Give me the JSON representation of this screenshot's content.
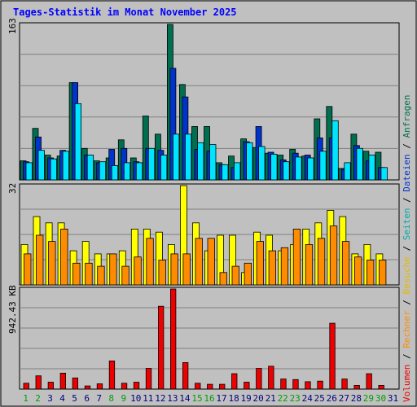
{
  "chart_data": {
    "type": "bar",
    "title": "Tages-Statistik im Monat November 2025",
    "categories": [
      "1",
      "2",
      "3",
      "4",
      "5",
      "6",
      "7",
      "8",
      "9",
      "10",
      "11",
      "12",
      "13",
      "14",
      "15",
      "16",
      "17",
      "18",
      "19",
      "20",
      "21",
      "22",
      "23",
      "24",
      "25",
      "26",
      "27",
      "28",
      "29",
      "30",
      "31"
    ],
    "weekend_days": [
      "1",
      "2",
      "8",
      "9",
      "15",
      "16",
      "22",
      "23",
      "29",
      "30"
    ],
    "panels": [
      {
        "axis_label": "163",
        "ylim": [
          0,
          163
        ],
        "series": [
          {
            "name": "Anfragen",
            "color": "#006f4f",
            "values": [
              20,
              54,
              26,
              25,
              102,
              33,
              20,
              23,
              42,
              23,
              67,
              48,
              163,
              100,
              56,
              56,
              18,
              25,
              43,
              34,
              28,
              26,
              32,
              25,
              64,
              77,
              12,
              48,
              30,
              29,
              0
            ]
          },
          {
            "name": "Dateien",
            "color": "#0033cc",
            "values": [
              19,
              45,
              23,
              31,
              102,
              26,
              18,
              32,
              33,
              19,
              33,
              31,
              117,
              87,
              32,
              30,
              16,
              13,
              40,
              56,
              29,
              21,
              28,
              26,
              44,
              44,
              11,
              36,
              20,
              13,
              0
            ]
          },
          {
            "name": "Seiten",
            "color": "#00e5ff",
            "values": [
              18,
              31,
              22,
              30,
              80,
              26,
              19,
              15,
              18,
              18,
              33,
              26,
              48,
              48,
              39,
              37,
              16,
              18,
              39,
              35,
              27,
              19,
              24,
              23,
              30,
              62,
              18,
              33,
              26,
              13,
              0
            ]
          }
        ]
      },
      {
        "axis_label": "32",
        "ylim": [
          0,
          32
        ],
        "series": [
          {
            "name": "Besuche",
            "color": "#ffff00",
            "values": [
              13,
              22,
              20,
              20,
              11,
              14,
              10,
              10,
              11,
              18,
              18,
              17,
              13,
              32,
              20,
              11,
              16,
              16,
              4,
              17,
              16,
              11,
              13,
              18,
              20,
              24,
              22,
              10,
              13,
              10,
              0
            ]
          },
          {
            "name": "Rechner",
            "color": "#ff8c00",
            "values": [
              10,
              16,
              14,
              18,
              7,
              7,
              6,
              10,
              6,
              9,
              15,
              8,
              10,
              10,
              15,
              15,
              4,
              6,
              7,
              14,
              11,
              12,
              18,
              13,
              15,
              19,
              14,
              9,
              8,
              8,
              0
            ]
          }
        ]
      },
      {
        "axis_label": "942.43 KB",
        "ylim": [
          0,
          942.43
        ],
        "series": [
          {
            "name": "Volumen",
            "color": "#ee0000",
            "values": [
              55,
              125,
              65,
              150,
              105,
              30,
              50,
              265,
              55,
              65,
              195,
              780,
              942.43,
              250,
              55,
              45,
              45,
              145,
              65,
              195,
              215,
              95,
              90,
              70,
              75,
              620,
              95,
              35,
              145,
              35,
              0
            ]
          }
        ]
      }
    ],
    "legend": [
      "Volumen",
      "/",
      "Rechner",
      "/",
      "Besuche",
      "/",
      "Seiten",
      "/",
      "Dateien",
      "/",
      "Anfragen"
    ],
    "legend_colors": [
      "#ee0000",
      "#000000",
      "#ff8c00",
      "#000000",
      "#e6b800",
      "#000000",
      "#00aaaa",
      "#000000",
      "#0033cc",
      "#000000",
      "#006f4f"
    ],
    "day_label_color": "#000080",
    "weekend_label_color": "#00a000",
    "title_color": "#0000ff"
  }
}
